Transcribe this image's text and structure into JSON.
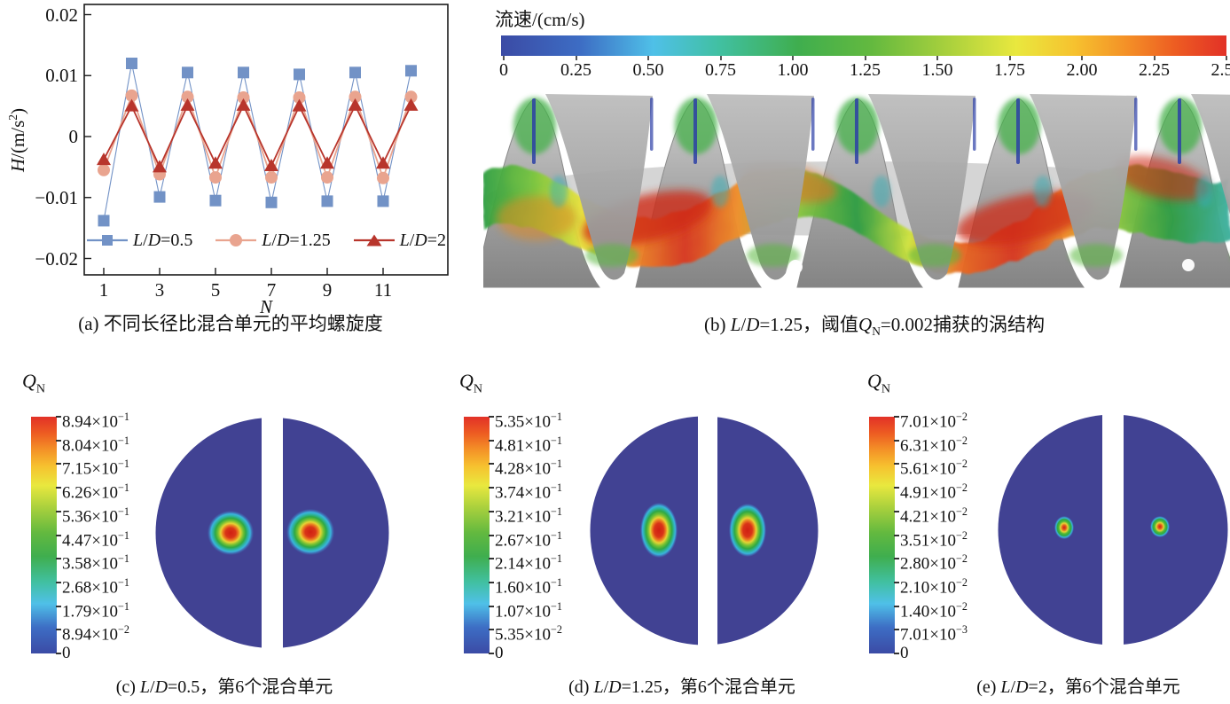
{
  "captions": {
    "a": "(a) 不同长径比混合单元的平均螺旋度",
    "b": "(b) {L}/{D}=1.25，阈值{Q}{_N}=0.002捕获的涡结构",
    "c": "(c) {L}/{D}=0.5，第6个混合单元",
    "d": "(d) {L}/{D}=1.25，第6个混合单元",
    "e": "(e) {L}/{D}=2，第6个混合单元"
  },
  "colors": {
    "series_ld05": "#7292c6",
    "series_ld125": "#e9a48f",
    "series_ld2": "#b8352c",
    "contour_background": "#414293",
    "frame": "#1a1a1a",
    "colormap_stops": [
      {
        "c": "#3b4ba5",
        "p": 0
      },
      {
        "c": "#3d6dc4",
        "p": 11
      },
      {
        "c": "#4fc0e8",
        "p": 21
      },
      {
        "c": "#41c0a2",
        "p": 30
      },
      {
        "c": "#3fae4e",
        "p": 41
      },
      {
        "c": "#63b93f",
        "p": 51
      },
      {
        "c": "#a5cf3d",
        "p": 61
      },
      {
        "c": "#e9e83e",
        "p": 71
      },
      {
        "c": "#f6c22f",
        "p": 79
      },
      {
        "c": "#f49227",
        "p": 86
      },
      {
        "c": "#ed5c22",
        "p": 93
      },
      {
        "c": "#e23127",
        "p": 100
      }
    ]
  },
  "chart_data": [
    {
      "id": "a",
      "type": "line",
      "title": "",
      "xlabel": "{N}",
      "ylabel": "{H}/(m/s{^2})",
      "x": [
        1,
        2,
        3,
        4,
        5,
        6,
        7,
        8,
        9,
        10,
        11,
        12
      ],
      "series": [
        {
          "name": "{L}/{D}=0.5",
          "marker": "square",
          "color": "#7292c6",
          "values": [
            -0.0138,
            0.012,
            -0.0099,
            0.0105,
            -0.0105,
            0.0105,
            -0.0108,
            0.0102,
            -0.0106,
            0.0105,
            -0.0106,
            0.0108
          ]
        },
        {
          "name": "{L}/{D}=1.25",
          "marker": "circle",
          "color": "#e9a48f",
          "values": [
            -0.0055,
            0.0067,
            -0.0062,
            0.0065,
            -0.0067,
            0.0064,
            -0.0067,
            0.0064,
            -0.0067,
            0.0065,
            -0.0068,
            0.0065
          ]
        },
        {
          "name": "{L}/{D}=2",
          "marker": "triangle",
          "color": "#b8352c",
          "values": [
            -0.0038,
            0.005,
            -0.005,
            0.0051,
            -0.0044,
            0.0051,
            -0.0048,
            0.005,
            -0.0044,
            0.0051,
            -0.0044,
            0.0051
          ]
        }
      ],
      "xticks": [
        1,
        3,
        5,
        7,
        9,
        11
      ],
      "yticks": [
        0.02,
        0.01,
        0,
        -0.01,
        -0.02
      ],
      "ytick_labels": [
        "0.02",
        "0.01",
        "0",
        "−0.01",
        "−0.02"
      ],
      "xlim": [
        0.3,
        13.3
      ],
      "ylim": [
        -0.0227,
        0.0217
      ],
      "grid": false,
      "legend_position": "inside-bottom"
    },
    {
      "id": "b",
      "type": "heatmap",
      "title": "流速/(cm/s)",
      "orientation": "horizontal",
      "range": [
        0,
        2.5
      ],
      "ticks": [
        "0",
        "0.25",
        "0.50",
        "0.75",
        "1.00",
        "1.25",
        "1.50",
        "1.75",
        "2.00",
        "2.25",
        "2.50"
      ]
    },
    {
      "id": "c",
      "type": "heatmap",
      "title": "{Q}{_N}",
      "orientation": "vertical",
      "range": [
        0,
        0.894
      ],
      "ticks": [
        "8.94×10{^−1}",
        "8.04×10{^−1}",
        "7.15×10{^−1}",
        "6.26×10{^−1}",
        "5.36×10{^−1}",
        "4.47×10{^−1}",
        "3.58×10{^−1}",
        "2.68×10{^−1}",
        "1.79×10{^−1}",
        "8.94×10{^−2}",
        "0"
      ]
    },
    {
      "id": "d",
      "type": "heatmap",
      "title": "{Q}{_N}",
      "orientation": "vertical",
      "range": [
        0,
        0.535
      ],
      "ticks": [
        "5.35×10{^−1}",
        "4.81×10{^−1}",
        "4.28×10{^−1}",
        "3.74×10{^−1}",
        "3.21×10{^−1}",
        "2.67×10{^−1}",
        "2.14×10{^−1}",
        "1.60×10{^−1}",
        "1.07×10{^−1}",
        "5.35×10{^−2}",
        "0"
      ]
    },
    {
      "id": "e",
      "type": "heatmap",
      "title": "{Q}{_N}",
      "orientation": "vertical",
      "range": [
        0,
        0.0701
      ],
      "ticks": [
        "7.01×10{^−2}",
        "6.31×10{^−2}",
        "5.61×10{^−2}",
        "4.91×10{^−2}",
        "4.21×10{^−2}",
        "3.51×10{^−2}",
        "2.80×10{^−2}",
        "2.10×10{^−2}",
        "1.40×10{^−2}",
        "7.01×10{^−3}",
        "0"
      ]
    }
  ]
}
